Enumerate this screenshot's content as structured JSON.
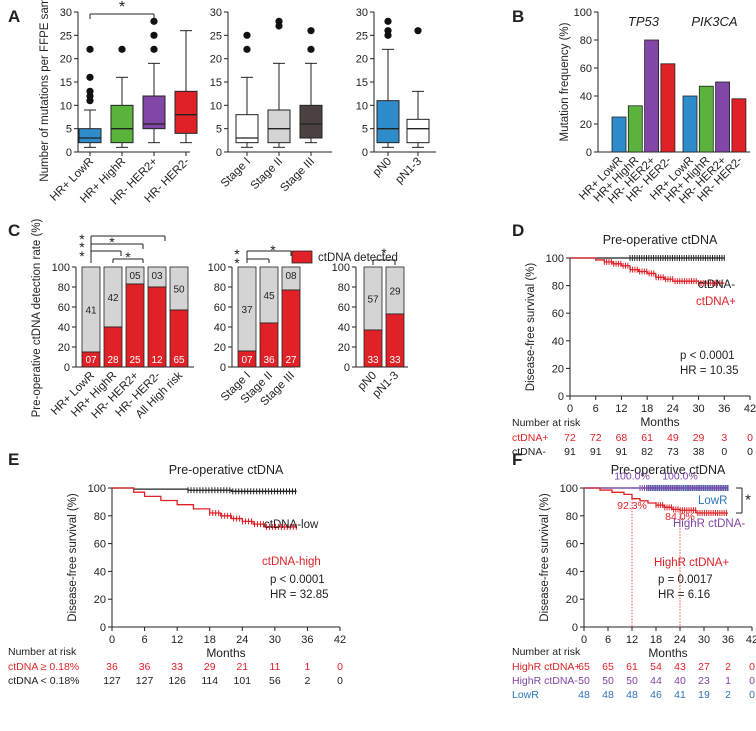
{
  "colors": {
    "blue": "#2e8ccb",
    "green": "#5ab33c",
    "purple": "#8146a6",
    "red": "#e02127",
    "grey": "#d4d4d4",
    "white": "#ffffff",
    "darkgrey": "#4a4140",
    "logr": "#2b74b8"
  },
  "chart_data": [
    {
      "panel": "A",
      "type": "box",
      "ylabel": "Number of mutations per FFPE sample",
      "ylim": [
        0,
        30
      ],
      "yticks": [
        "0",
        "5",
        "10",
        "15",
        "20",
        "25",
        "30"
      ],
      "groups": [
        {
          "categories": [
            "HR+ LowR",
            "HR+ HighR",
            "HR- HER2+",
            "HR- HER2-"
          ],
          "colors": [
            "#2e8ccb",
            "#5ab33c",
            "#8146a6",
            "#e02127"
          ],
          "boxes": [
            {
              "min": 1,
              "q1": 2,
              "median": 3,
              "q3": 5,
              "max": 9,
              "outliers": [
                11,
                12,
                13,
                16,
                22
              ]
            },
            {
              "min": 1,
              "q1": 2,
              "median": 5,
              "q3": 10,
              "max": 16,
              "outliers": [
                22
              ]
            },
            {
              "min": 2,
              "q1": 5,
              "median": 6,
              "q3": 12,
              "max": 19,
              "outliers": [
                22,
                25,
                28
              ]
            },
            {
              "min": 2,
              "q1": 4,
              "median": 8,
              "q3": 13,
              "max": 26,
              "outliers": []
            }
          ],
          "significance": "*"
        },
        {
          "categories": [
            "Stage I",
            "Stage II",
            "Stage III"
          ],
          "colors": [
            "#ffffff",
            "#d4d4d4",
            "#4a4140"
          ],
          "boxes": [
            {
              "min": 1,
              "q1": 2,
              "median": 3,
              "q3": 8,
              "max": 16,
              "outliers": [
                22,
                25
              ]
            },
            {
              "min": 1,
              "q1": 2,
              "median": 5,
              "q3": 9,
              "max": 19,
              "outliers": [
                27,
                28
              ]
            },
            {
              "min": 2,
              "q1": 3,
              "median": 6,
              "q3": 10,
              "max": 19,
              "outliers": [
                22,
                26
              ]
            }
          ]
        },
        {
          "categories": [
            "pN0",
            "pN1-3"
          ],
          "colors": [
            "#2e8ccb",
            "#ffffff"
          ],
          "boxes": [
            {
              "min": 1,
              "q1": 2,
              "median": 5,
              "q3": 11,
              "max": 22,
              "outliers": [
                25,
                26,
                28
              ]
            },
            {
              "min": 1,
              "q1": 2,
              "median": 5,
              "q3": 7,
              "max": 13,
              "outliers": [
                26
              ]
            }
          ]
        }
      ]
    },
    {
      "panel": "B",
      "type": "bar",
      "ylabel": "Mutation frequency (%)",
      "ylim": [
        0,
        100
      ],
      "yticks": [
        "0",
        "20",
        "40",
        "60",
        "80",
        "100"
      ],
      "genes": [
        "TP53",
        "PIK3CA"
      ],
      "categories": [
        "HR+ LowR",
        "HR+ HighR",
        "HR- HER2+",
        "HR- HER2-"
      ],
      "colors": [
        "#2e8ccb",
        "#5ab33c",
        "#8146a6",
        "#e02127"
      ],
      "series": [
        {
          "name": "TP53",
          "values": [
            25,
            33,
            80,
            63
          ]
        },
        {
          "name": "PIK3CA",
          "values": [
            40,
            47,
            50,
            38
          ]
        }
      ]
    },
    {
      "panel": "C",
      "type": "stacked-bar",
      "ylabel": "Pre-operative ctDNA detection rate (%)",
      "ylim": [
        0,
        100
      ],
      "yticks": [
        "0",
        "20",
        "40",
        "60",
        "80",
        "100"
      ],
      "legend": "ctDNA detected",
      "groups": [
        {
          "categories": [
            "HR+ LowR",
            "HR+ HighR",
            "HR- HER2+",
            "HR- HER2-",
            "All High risk"
          ],
          "detected_pct": [
            15,
            40,
            83,
            80,
            57
          ],
          "detected_n": [
            "07",
            "28",
            "25",
            "12",
            "65"
          ],
          "undetected_n": [
            "41",
            "42",
            "05",
            "03",
            "50"
          ],
          "significance": [
            "*",
            "*",
            "*",
            "*",
            "*"
          ]
        },
        {
          "categories": [
            "Stage I",
            "Stage II",
            "Stage III"
          ],
          "detected_pct": [
            16,
            44,
            77
          ],
          "detected_n": [
            "07",
            "36",
            "27"
          ],
          "undetected_n": [
            "37",
            "45",
            "08"
          ],
          "significance": [
            "*",
            "*",
            "*"
          ]
        },
        {
          "categories": [
            "pN0",
            "pN1-3"
          ],
          "detected_pct": [
            37,
            53
          ],
          "detected_n": [
            "33",
            "33"
          ],
          "undetected_n": [
            "57",
            "29"
          ],
          "significance": [
            "*"
          ]
        }
      ]
    },
    {
      "panel": "D",
      "type": "km",
      "title": "Pre-operative ctDNA",
      "xlabel": "Months",
      "ylabel": "Disease-free survival (%)",
      "xticks": [
        "0",
        "6",
        "12",
        "18",
        "24",
        "30",
        "36",
        "42"
      ],
      "yticks": [
        "0",
        "20",
        "40",
        "60",
        "80",
        "100"
      ],
      "xlim": [
        0,
        42
      ],
      "ylim": [
        0,
        100
      ],
      "series": [
        {
          "name": "ctDNA-",
          "color": "#222222",
          "t": [
            0,
            36
          ],
          "s": [
            100,
            100
          ]
        },
        {
          "name": "ctDNA+",
          "color": "#e02127",
          "t": [
            0,
            6,
            8,
            10,
            12,
            14,
            16,
            18,
            20,
            22,
            24,
            30,
            36
          ],
          "s": [
            100,
            98.6,
            97.2,
            95.8,
            94.4,
            91.6,
            90.2,
            88.8,
            86,
            84.6,
            83.2,
            81.8,
            81.8
          ]
        }
      ],
      "stats": [
        "p < 0.0001",
        "HR = 10.35"
      ],
      "risk_title": "Number at risk",
      "risk": [
        {
          "label": "ctDNA+",
          "color": "#e02127",
          "values": [
            "72",
            "72",
            "68",
            "61",
            "49",
            "29",
            "3",
            "0"
          ]
        },
        {
          "label": "ctDNA-",
          "color": "#222222",
          "values": [
            "91",
            "91",
            "91",
            "82",
            "73",
            "38",
            "0",
            "0"
          ]
        }
      ]
    },
    {
      "panel": "E",
      "type": "km",
      "title": "Pre-operative ctDNA",
      "xlabel": "Months",
      "ylabel": "Disease-free survival (%)",
      "xticks": [
        "0",
        "6",
        "12",
        "18",
        "24",
        "30",
        "36",
        "42"
      ],
      "yticks": [
        "0",
        "20",
        "40",
        "60",
        "80",
        "100"
      ],
      "xlim": [
        0,
        42
      ],
      "ylim": [
        0,
        100
      ],
      "series": [
        {
          "name": "ctDNA-low",
          "color": "#222222",
          "t": [
            0,
            4,
            14,
            22,
            34
          ],
          "s": [
            100,
            99.2,
            98.4,
            97.6,
            97.6
          ]
        },
        {
          "name": "ctDNA-high",
          "color": "#e02127",
          "t": [
            0,
            4,
            6,
            9,
            12,
            15,
            18,
            20,
            22,
            24,
            26,
            28,
            30,
            34
          ],
          "s": [
            100,
            97,
            94,
            91,
            88,
            85,
            82,
            80,
            78,
            76,
            74,
            72,
            72,
            72
          ]
        }
      ],
      "stats": [
        "p < 0.0001",
        "HR = 32.85"
      ],
      "risk_title": "Number at risk",
      "risk": [
        {
          "label": "ctDNA ≥ 0.18%",
          "color": "#e02127",
          "values": [
            "36",
            "36",
            "33",
            "29",
            "21",
            "11",
            "1",
            "0"
          ]
        },
        {
          "label": "ctDNA < 0.18%",
          "color": "#222222",
          "values": [
            "127",
            "127",
            "126",
            "114",
            "101",
            "56",
            "2",
            "0"
          ]
        }
      ]
    },
    {
      "panel": "F",
      "type": "km",
      "title": "Pre-operative ctDNA",
      "xlabel": "Months",
      "ylabel": "Disease-free survival (%)",
      "xticks": [
        "0",
        "6",
        "12",
        "18",
        "24",
        "30",
        "36",
        "42"
      ],
      "yticks": [
        "0",
        "20",
        "40",
        "60",
        "80",
        "100"
      ],
      "xlim": [
        0,
        42
      ],
      "ylim": [
        0,
        100
      ],
      "series": [
        {
          "name": "LowR",
          "color": "#2b74b8",
          "t": [
            0,
            36
          ],
          "s": [
            100,
            100
          ]
        },
        {
          "name": "HighR ctDNA-",
          "color": "#8146a6",
          "t": [
            0,
            36
          ],
          "s": [
            100,
            100
          ]
        },
        {
          "name": "HighR ctDNA+",
          "color": "#e02127",
          "t": [
            0,
            4,
            7,
            10,
            12,
            14,
            16,
            18,
            20,
            22,
            24,
            28,
            36
          ],
          "s": [
            100,
            98.5,
            96.9,
            95.4,
            92.3,
            90.8,
            89.2,
            87.7,
            86.1,
            84.6,
            84,
            82,
            82
          ]
        }
      ],
      "annotations": [
        {
          "text": "100.0%",
          "color": "#8146a6",
          "x": 12,
          "y": 106
        },
        {
          "text": "100.0%",
          "color": "#8146a6",
          "x": 24,
          "y": 106
        },
        {
          "text": "92.3%",
          "color": "#e02127",
          "x": 12,
          "y": 85
        },
        {
          "text": "84.0%",
          "color": "#e02127",
          "x": 24,
          "y": 77
        }
      ],
      "significance": "*",
      "stats": [
        "p = 0.0017",
        "HR = 6.16"
      ],
      "risk_title": "Number at risk",
      "risk": [
        {
          "label": "HighR ctDNA+",
          "color": "#e02127",
          "values": [
            "65",
            "65",
            "61",
            "54",
            "43",
            "27",
            "2",
            "0"
          ]
        },
        {
          "label": "HighR ctDNA-",
          "color": "#8146a6",
          "values": [
            "50",
            "50",
            "50",
            "44",
            "40",
            "23",
            "1",
            "0"
          ]
        },
        {
          "label": "LowR",
          "color": "#2b74b8",
          "values": [
            "48",
            "48",
            "48",
            "46",
            "41",
            "19",
            "2",
            "0"
          ]
        }
      ]
    }
  ],
  "panels": {
    "A": "A",
    "B": "B",
    "C": "C",
    "D": "D",
    "E": "E",
    "F": "F"
  }
}
